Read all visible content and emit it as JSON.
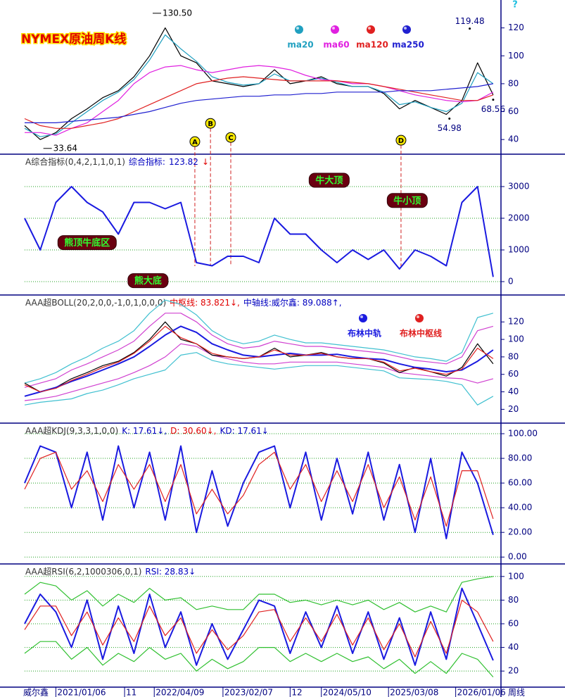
{
  "help": "?",
  "chart_data": [
    {
      "type": "line",
      "title": "NYMEX原油周K线",
      "x": [
        0,
        10,
        20,
        30,
        40,
        50,
        60,
        70,
        80,
        90,
        100,
        110,
        120,
        130,
        140,
        150,
        160,
        170,
        180,
        190,
        200,
        210,
        220,
        230,
        240,
        250,
        260,
        270,
        280,
        290,
        300
      ],
      "xlim": [
        0,
        305
      ],
      "ylim": [
        30,
        140
      ],
      "yticks": [
        40,
        60,
        80,
        100,
        120
      ],
      "grid": false,
      "series": [
        {
          "color": "#000000",
          "values": [
            50,
            40,
            45,
            55,
            62,
            70,
            75,
            85,
            100,
            120,
            100,
            95,
            82,
            80,
            78,
            80,
            90,
            80,
            82,
            85,
            80,
            78,
            78,
            73,
            62,
            68,
            63,
            58,
            68,
            95,
            72
          ]
        },
        {
          "name": "ma20",
          "color": "#20a0c0",
          "values": [
            48,
            42,
            44,
            52,
            60,
            68,
            74,
            83,
            97,
            115,
            105,
            96,
            85,
            81,
            79,
            80,
            87,
            82,
            82,
            84,
            81,
            78,
            78,
            74,
            65,
            67,
            63,
            60,
            66,
            88,
            80
          ]
        },
        {
          "name": "ma60",
          "color": "#e020e0",
          "values": [
            45,
            45,
            43,
            48,
            52,
            60,
            68,
            80,
            88,
            92,
            93,
            90,
            88,
            90,
            92,
            93,
            92,
            90,
            86,
            83,
            82,
            80,
            80,
            78,
            75,
            72,
            70,
            68,
            67,
            68,
            74
          ]
        },
        {
          "name": "ma120",
          "color": "#e02020",
          "values": [
            55,
            50,
            48,
            48,
            50,
            52,
            55,
            60,
            65,
            70,
            75,
            80,
            82,
            84,
            85,
            84,
            83,
            82,
            82,
            82,
            82,
            81,
            80,
            78,
            76,
            74,
            72,
            70,
            68,
            68,
            72
          ]
        },
        {
          "name": "ma250",
          "color": "#2020d0",
          "values": [
            52,
            52,
            52,
            53,
            54,
            55,
            56,
            58,
            60,
            63,
            66,
            68,
            69,
            70,
            71,
            71,
            72,
            72,
            73,
            73,
            74,
            74,
            74,
            74,
            75,
            75,
            75,
            76,
            77,
            78,
            80
          ]
        }
      ],
      "extremes": [
        {
          "x": 82,
          "value": 130.5,
          "label": "130.50",
          "side": "right"
        },
        {
          "x": 12,
          "value": 33.64,
          "label": "33.64",
          "side": "right"
        },
        {
          "x": 285,
          "value": 119.48,
          "label": "119.48",
          "side": "above"
        },
        {
          "x": 272,
          "value": 54.98,
          "label": "54.98",
          "side": "below"
        },
        {
          "x": 300,
          "value": 68.56,
          "label": "68.56",
          "side": "below"
        }
      ],
      "markers": [
        {
          "label": "A",
          "x": 109,
          "y": 38.5
        },
        {
          "label": "B",
          "x": 119,
          "y": 51.6
        },
        {
          "label": "C",
          "x": 132,
          "y": 41.5
        },
        {
          "label": "D",
          "x": 241,
          "y": 39.5
        }
      ]
    },
    {
      "type": "line",
      "header": [
        {
          "text": "A综合指标(0,4,2,1,1,0,1)",
          "color": "#333333"
        },
        {
          "text": "综合指标:",
          "color": "#0000c0"
        },
        {
          "text": "123.82",
          "color": "#0000c0"
        },
        {
          "text": "↓",
          "color": "#e00000"
        }
      ],
      "x": [
        0,
        10,
        20,
        30,
        40,
        50,
        60,
        70,
        80,
        90,
        100,
        110,
        120,
        130,
        140,
        150,
        160,
        170,
        180,
        190,
        200,
        210,
        220,
        230,
        240,
        250,
        260,
        270,
        280,
        290,
        300
      ],
      "xlim": [
        0,
        305
      ],
      "ylim": [
        -400,
        4000
      ],
      "yticks": [
        0,
        1000,
        2000,
        3000
      ],
      "grid": true,
      "series": [
        {
          "color": "#1a1ae0",
          "bold": true,
          "values": [
            2000,
            1000,
            2500,
            3000,
            2500,
            2200,
            1500,
            2500,
            2500,
            2300,
            2500,
            600,
            500,
            800,
            800,
            600,
            2000,
            1500,
            1500,
            1000,
            600,
            1000,
            700,
            1000,
            400,
            1000,
            800,
            500,
            2500,
            3000,
            150
          ]
        }
      ],
      "labels": [
        {
          "text": "牛大顶",
          "x": 195,
          "y": 3200
        },
        {
          "text": "牛小顶",
          "x": 245,
          "y": 2560
        },
        {
          "text": "熊顶牛底区",
          "x": 40,
          "y": 1230
        },
        {
          "text": "熊大底",
          "x": 79,
          "y": 30
        }
      ]
    },
    {
      "type": "line",
      "header": [
        {
          "text": "AAA超BOLL(20,2,0,0,-1,0,1,0,0,0)",
          "color": "#333333"
        },
        {
          "text": "中枢线: 83.821↓,",
          "color": "#e00000"
        },
        {
          "text": "中轴线:威尔鑫: 89.088↑,",
          "color": "#0000c0"
        }
      ],
      "x": [
        0,
        10,
        20,
        30,
        40,
        50,
        60,
        70,
        80,
        90,
        100,
        110,
        120,
        130,
        140,
        150,
        160,
        170,
        180,
        190,
        200,
        210,
        220,
        230,
        240,
        250,
        260,
        270,
        280,
        290,
        300
      ],
      "xlim": [
        0,
        305
      ],
      "ylim": [
        5,
        150
      ],
      "yticks": [
        20,
        40,
        60,
        80,
        100,
        120
      ],
      "grid": false,
      "series": [
        {
          "color": "#40c0d0",
          "values": [
            50,
            55,
            62,
            72,
            80,
            90,
            98,
            110,
            130,
            145,
            140,
            128,
            110,
            100,
            95,
            98,
            105,
            100,
            96,
            96,
            94,
            92,
            90,
            88,
            84,
            80,
            78,
            75,
            85,
            125,
            130
          ]
        },
        {
          "color": "#40c0d0",
          "values": [
            25,
            28,
            30,
            32,
            38,
            42,
            48,
            55,
            60,
            65,
            82,
            85,
            76,
            72,
            70,
            68,
            66,
            68,
            70,
            70,
            70,
            68,
            66,
            64,
            56,
            55,
            54,
            52,
            48,
            25,
            35
          ]
        },
        {
          "color": "#d040d0",
          "values": [
            45,
            50,
            55,
            65,
            72,
            80,
            88,
            98,
            115,
            130,
            130,
            120,
            105,
            95,
            90,
            92,
            98,
            95,
            92,
            92,
            90,
            88,
            86,
            84,
            80,
            76,
            74,
            72,
            80,
            110,
            115
          ]
        },
        {
          "color": "#d040d0",
          "values": [
            30,
            32,
            35,
            40,
            45,
            50,
            55,
            62,
            70,
            80,
            95,
            92,
            82,
            78,
            74,
            72,
            72,
            74,
            74,
            74,
            74,
            72,
            70,
            68,
            62,
            60,
            58,
            56,
            55,
            50,
            55
          ]
        },
        {
          "color": "#000000",
          "values": [
            50,
            40,
            45,
            55,
            62,
            70,
            75,
            85,
            100,
            120,
            100,
            95,
            82,
            80,
            78,
            80,
            90,
            80,
            82,
            85,
            80,
            78,
            78,
            73,
            62,
            68,
            63,
            58,
            68,
            95,
            72
          ]
        },
        {
          "name": "布林中轨",
          "color": "#1a1ae0",
          "bold": true,
          "values": [
            35,
            40,
            45,
            52,
            58,
            65,
            72,
            80,
            92,
            105,
            115,
            108,
            95,
            88,
            82,
            80,
            82,
            84,
            82,
            82,
            83,
            80,
            78,
            77,
            72,
            68,
            66,
            63,
            65,
            75,
            88
          ]
        },
        {
          "name": "布林中枢线",
          "color": "#e02020",
          "values": [
            48,
            40,
            44,
            53,
            60,
            68,
            74,
            84,
            98,
            115,
            102,
            95,
            84,
            80,
            78,
            80,
            88,
            82,
            82,
            84,
            80,
            78,
            78,
            74,
            64,
            67,
            63,
            60,
            66,
            90,
            78
          ]
        }
      ]
    },
    {
      "type": "line",
      "header": [
        {
          "text": "AAA超KDJ(9,3,3,1,0,0)",
          "color": "#333333"
        },
        {
          "text": "K: 17.61↓,",
          "color": "#0000c0"
        },
        {
          "text": "D: 30.60↓,",
          "color": "#e00000"
        },
        {
          "text": "KD: 17.61↓",
          "color": "#0000c0"
        }
      ],
      "x": [
        0,
        10,
        20,
        30,
        40,
        50,
        60,
        70,
        80,
        90,
        100,
        110,
        120,
        130,
        140,
        150,
        160,
        170,
        180,
        190,
        200,
        210,
        220,
        230,
        240,
        250,
        260,
        270,
        280,
        290,
        300
      ],
      "xlim": [
        0,
        305
      ],
      "ylim": [
        -5,
        108
      ],
      "yticks": [
        {
          "value": 0,
          "label": "0.00"
        },
        {
          "value": 20,
          "label": "20.00"
        },
        {
          "value": 40,
          "label": "40.00"
        },
        {
          "value": 60,
          "label": "60.00"
        },
        {
          "value": 80,
          "label": "80.00"
        },
        {
          "value": 100,
          "label": "100.00"
        }
      ],
      "grid": true,
      "series": [
        {
          "color": "#1a1ae0",
          "bold": true,
          "values": [
            60,
            90,
            85,
            40,
            85,
            30,
            90,
            40,
            85,
            30,
            90,
            20,
            70,
            25,
            60,
            85,
            90,
            40,
            85,
            30,
            80,
            35,
            85,
            30,
            75,
            20,
            80,
            15,
            85,
            60,
            18
          ]
        },
        {
          "color": "#e02020",
          "values": [
            55,
            80,
            85,
            55,
            70,
            45,
            75,
            55,
            75,
            45,
            75,
            35,
            55,
            35,
            50,
            75,
            85,
            55,
            75,
            45,
            70,
            45,
            75,
            40,
            65,
            30,
            65,
            25,
            70,
            70,
            31
          ]
        }
      ]
    },
    {
      "type": "line",
      "header": [
        {
          "text": "AAA超RSI(6,2,1000306,0,1)",
          "color": "#333333"
        },
        {
          "text": "RSI: 28.83↓",
          "color": "#0000c0"
        }
      ],
      "x": [
        0,
        10,
        20,
        30,
        40,
        50,
        60,
        70,
        80,
        90,
        100,
        110,
        120,
        130,
        140,
        150,
        160,
        170,
        180,
        190,
        200,
        210,
        220,
        230,
        240,
        250,
        260,
        270,
        280,
        290,
        300
      ],
      "xlim": [
        0,
        305
      ],
      "ylim": [
        7,
        110
      ],
      "yticks": [
        20,
        40,
        60,
        80,
        100
      ],
      "grid": true,
      "series": [
        {
          "color": "#30c030",
          "values": [
            85,
            95,
            92,
            80,
            88,
            75,
            85,
            78,
            90,
            80,
            82,
            72,
            75,
            72,
            72,
            85,
            85,
            78,
            80,
            76,
            80,
            76,
            80,
            72,
            78,
            70,
            75,
            70,
            95,
            98,
            100
          ]
        },
        {
          "color": "#30c030",
          "values": [
            35,
            45,
            45,
            30,
            40,
            25,
            35,
            28,
            40,
            30,
            35,
            20,
            30,
            22,
            28,
            40,
            40,
            28,
            35,
            28,
            35,
            28,
            32,
            22,
            30,
            18,
            28,
            18,
            35,
            30,
            15
          ]
        },
        {
          "color": "#1a1ae0",
          "bold": true,
          "values": [
            60,
            85,
            70,
            40,
            80,
            30,
            75,
            35,
            85,
            40,
            70,
            25,
            60,
            30,
            55,
            80,
            75,
            35,
            70,
            40,
            75,
            35,
            70,
            30,
            65,
            25,
            70,
            30,
            90,
            60,
            29
          ]
        },
        {
          "color": "#e02020",
          "values": [
            55,
            75,
            75,
            50,
            70,
            42,
            65,
            45,
            75,
            50,
            65,
            35,
            55,
            38,
            50,
            70,
            72,
            45,
            65,
            45,
            68,
            42,
            65,
            38,
            60,
            32,
            62,
            35,
            80,
            70,
            45
          ]
        }
      ],
      "xticks": [
        {
          "value": 20,
          "label": "2021/01/06"
        },
        {
          "value": 64,
          "label": "11"
        },
        {
          "value": 83,
          "label": "2022/04/09"
        },
        {
          "value": 127,
          "label": "2023/02/07"
        },
        {
          "value": 170,
          "label": "12"
        },
        {
          "value": 190,
          "label": "2024/05/10"
        },
        {
          "value": 233,
          "label": "2025/03/08"
        },
        {
          "value": 276,
          "label": "2026/01/06"
        }
      ],
      "source": "威尔鑫",
      "xlabel": "周线"
    }
  ]
}
